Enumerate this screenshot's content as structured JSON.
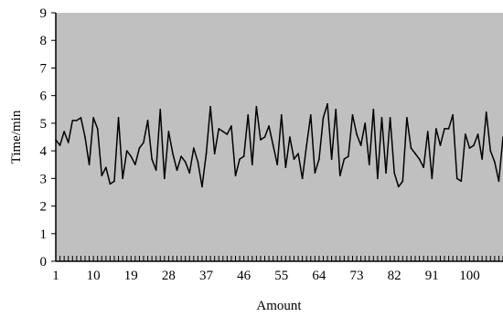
{
  "chart_data": {
    "type": "line",
    "title": "",
    "xlabel": "Amount",
    "ylabel": "Time/min",
    "ylim": [
      0,
      9
    ],
    "xlim": [
      1,
      108
    ],
    "y_ticks": [
      "0",
      "1",
      "2",
      "3",
      "4",
      "5",
      "6",
      "7",
      "8",
      "9"
    ],
    "x_tick_labels": [
      "1",
      "10",
      "19",
      "28",
      "37",
      "46",
      "55",
      "64",
      "73",
      "82",
      "91",
      "100"
    ],
    "x_tick_values": [
      1,
      10,
      19,
      28,
      37,
      46,
      55,
      64,
      73,
      82,
      91,
      100
    ],
    "grid": "none",
    "plot_background": "#c0c0c0",
    "line_color": "#000000",
    "series": [
      {
        "x": [
          1,
          2,
          3,
          4,
          5,
          6,
          7,
          8,
          9,
          10,
          11,
          12,
          13,
          14,
          15,
          16,
          17,
          18,
          19,
          20,
          21,
          22,
          23,
          24,
          25,
          26,
          27,
          28,
          29,
          30,
          31,
          32,
          33,
          34,
          35,
          36,
          37,
          38,
          39,
          40,
          41,
          42,
          43,
          44,
          45,
          46,
          47,
          48,
          49,
          50,
          51,
          52,
          53,
          54,
          55,
          56,
          57,
          58,
          59,
          60,
          61,
          62,
          63,
          64,
          65,
          66,
          67,
          68,
          69,
          70,
          71,
          72,
          73,
          74,
          75,
          76,
          77,
          78,
          79,
          80,
          81,
          82,
          83,
          84,
          85,
          86,
          87,
          88,
          89,
          90,
          91,
          92,
          93,
          94,
          95,
          96,
          97,
          98,
          99,
          100,
          101,
          102,
          103,
          104,
          105,
          106,
          107,
          108
        ],
        "y": [
          4.4,
          4.2,
          4.7,
          4.3,
          5.1,
          5.1,
          5.2,
          4.5,
          3.5,
          5.2,
          4.8,
          3.1,
          3.4,
          2.8,
          2.9,
          5.2,
          3.0,
          4.0,
          3.8,
          3.5,
          4.1,
          4.3,
          5.1,
          3.7,
          3.3,
          5.5,
          3.0,
          4.7,
          3.9,
          3.3,
          3.8,
          3.6,
          3.2,
          4.1,
          3.6,
          2.7,
          3.9,
          5.6,
          3.9,
          4.8,
          4.7,
          4.6,
          4.9,
          3.1,
          3.7,
          3.8,
          5.3,
          3.5,
          5.6,
          4.4,
          4.5,
          4.9,
          4.2,
          3.5,
          5.3,
          3.4,
          4.5,
          3.7,
          3.9,
          3.0,
          4.2,
          5.3,
          3.2,
          3.7,
          5.2,
          5.7,
          3.7,
          5.5,
          3.1,
          3.7,
          3.8,
          5.3,
          4.6,
          4.2,
          5.0,
          3.5,
          5.5,
          3.0,
          5.2,
          3.2,
          5.2,
          3.2,
          2.7,
          2.9,
          5.2,
          4.1,
          3.9,
          3.7,
          3.4,
          4.7,
          3.0,
          4.8,
          4.2,
          4.8,
          4.8,
          5.3,
          3.0,
          2.9,
          4.6,
          4.1,
          4.2,
          4.6,
          3.7,
          5.4,
          4.0,
          3.6,
          2.9,
          4.5
        ]
      }
    ]
  }
}
